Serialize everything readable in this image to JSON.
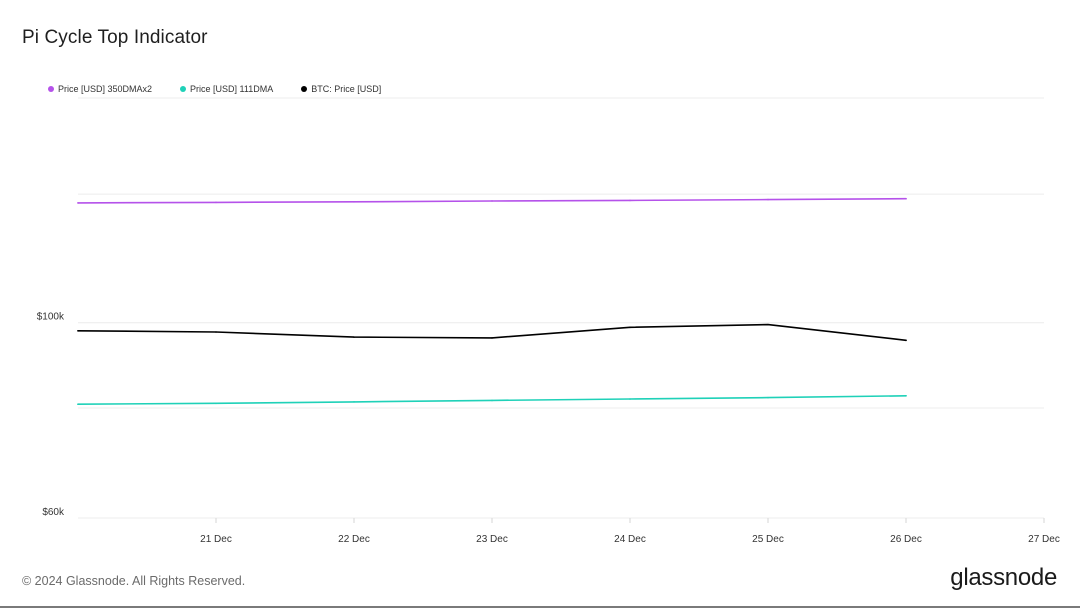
{
  "title": "Pi Cycle Top Indicator",
  "footer": "© 2024 Glassnode. All Rights Reserved.",
  "brand": "glassnode",
  "legend": [
    {
      "label": "Price [USD] 350DMAx2",
      "color": "#b552ea"
    },
    {
      "label": "Price [USD] 111DMA",
      "color": "#1fd1b8"
    },
    {
      "label": "BTC: Price [USD]",
      "color": "#000000"
    }
  ],
  "chart_data": {
    "type": "line",
    "xlabel": "",
    "ylabel": "",
    "x_tick_labels": [
      "21 Dec",
      "22 Dec",
      "23 Dec",
      "24 Dec",
      "25 Dec",
      "26 Dec",
      "27 Dec"
    ],
    "x_range": [
      "20 Dec",
      "27 Dec"
    ],
    "y_scale": "log",
    "ylim": [
      60000,
      180000
    ],
    "y_tick_labels": [
      "$100k",
      "$60k"
    ],
    "y_ticks": [
      100000,
      60000
    ],
    "grid": true,
    "legend_position": "top-left",
    "x": [
      "20 Dec",
      "21 Dec",
      "22 Dec",
      "23 Dec",
      "24 Dec",
      "25 Dec",
      "26 Dec"
    ],
    "series": [
      {
        "name": "Price [USD] 350DMAx2",
        "color": "#b552ea",
        "values": [
          136800,
          137000,
          137200,
          137500,
          137700,
          138000,
          138300
        ]
      },
      {
        "name": "Price [USD] 111DMA",
        "color": "#1fd1b8",
        "values": [
          80800,
          81000,
          81300,
          81600,
          81900,
          82200,
          82600
        ]
      },
      {
        "name": "BTC: Price [USD]",
        "color": "#000000",
        "values": [
          97900,
          97600,
          96300,
          96100,
          98800,
          99500,
          95500
        ]
      }
    ]
  }
}
